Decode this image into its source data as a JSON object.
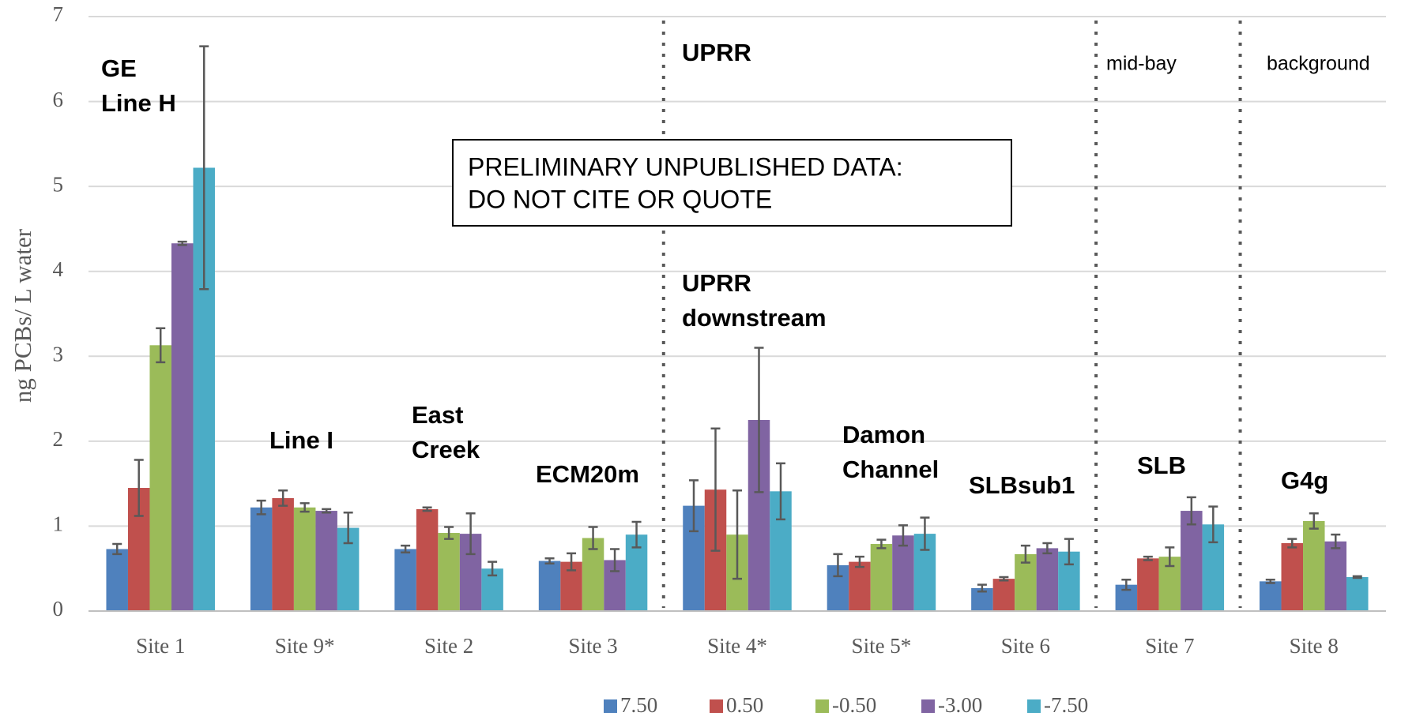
{
  "chart_data": {
    "type": "bar",
    "y_label": "ng PCBs/ L water",
    "categories": [
      "Site 1",
      "Site 9*",
      "Site 2",
      "Site 3",
      "Site 4*",
      "Site 5*",
      "Site 6",
      "Site 7",
      "Site 8"
    ],
    "series": [
      {
        "name": "7.50",
        "color": "#4f81bd",
        "values": [
          0.73,
          1.22,
          0.73,
          0.59,
          1.24,
          0.54,
          0.27,
          0.31,
          0.35
        ],
        "errors": [
          0.06,
          0.08,
          0.04,
          0.03,
          0.3,
          0.13,
          0.04,
          0.06,
          0.02
        ]
      },
      {
        "name": "0.50",
        "color": "#c0504d",
        "values": [
          1.45,
          1.33,
          1.2,
          0.58,
          1.43,
          0.58,
          0.38,
          0.62,
          0.8
        ],
        "errors": [
          0.33,
          0.09,
          0.02,
          0.1,
          0.72,
          0.06,
          0.02,
          0.02,
          0.05
        ]
      },
      {
        "name": "-0.50",
        "color": "#9bbb59",
        "values": [
          3.13,
          1.22,
          0.92,
          0.86,
          0.9,
          0.79,
          0.67,
          0.64,
          1.06
        ],
        "errors": [
          0.2,
          0.05,
          0.07,
          0.13,
          0.52,
          0.05,
          0.1,
          0.11,
          0.09
        ]
      },
      {
        "name": "-3.00",
        "color": "#8064a2",
        "values": [
          4.33,
          1.18,
          0.91,
          0.6,
          2.25,
          0.89,
          0.74,
          1.18,
          0.82
        ],
        "errors": [
          0.02,
          0.02,
          0.24,
          0.13,
          0.85,
          0.12,
          0.06,
          0.16,
          0.08
        ]
      },
      {
        "name": "-7.50",
        "color": "#4bacc6",
        "values": [
          5.22,
          0.98,
          0.5,
          0.9,
          1.41,
          0.91,
          0.7,
          1.02,
          0.4
        ],
        "errors": [
          1.43,
          0.18,
          0.08,
          0.15,
          0.33,
          0.19,
          0.15,
          0.21,
          0.01
        ]
      }
    ],
    "ylim": [
      0,
      7
    ],
    "yticks": [
      0,
      1,
      2,
      3,
      4,
      5,
      6,
      7
    ],
    "grid": true,
    "annotations": [
      [
        "GE",
        "Line H"
      ],
      [
        "UPRR"
      ],
      [
        "mid-bay"
      ],
      [
        "background"
      ],
      [
        "UPRR",
        "downstream"
      ],
      [
        "Line I"
      ],
      [
        "East",
        "Creek"
      ],
      [
        "ECM20m"
      ],
      [
        "Damon",
        "Channel"
      ],
      [
        "SLBsub1"
      ],
      [
        "SLB"
      ],
      [
        "G4g"
      ]
    ],
    "notice": [
      "PRELIMINARY UNPUBLISHED DATA:",
      "DO NOT CITE OR QUOTE"
    ]
  }
}
